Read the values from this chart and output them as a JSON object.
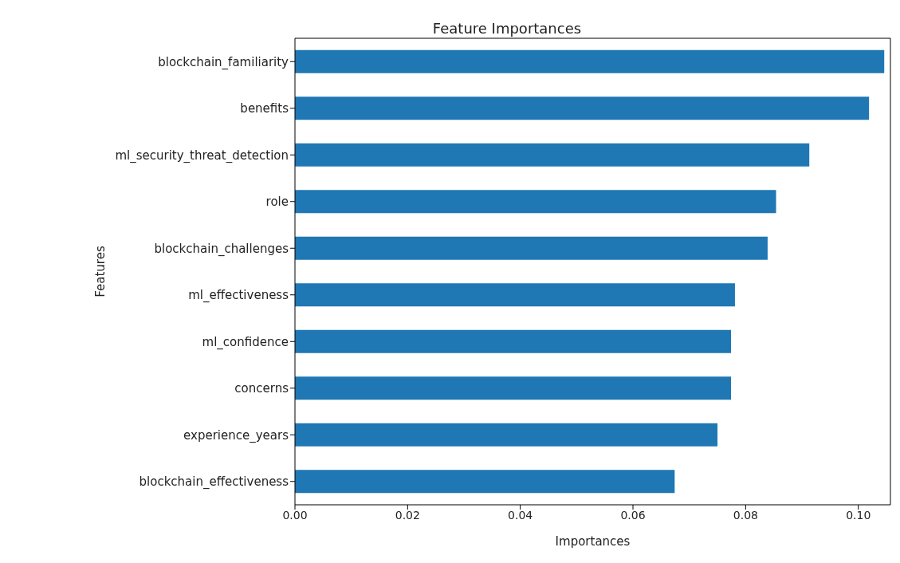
{
  "chart_data": {
    "type": "bar",
    "orientation": "horizontal",
    "title": "Feature Importances",
    "xlabel": "Importances",
    "ylabel": "Features",
    "categories": [
      "blockchain_familiarity",
      "benefits",
      "ml_security_threat_detection",
      "role",
      "blockchain_challenges",
      "ml_effectiveness",
      "ml_confidence",
      "concerns",
      "experience_years",
      "blockchain_effectiveness"
    ],
    "values": [
      0.1046,
      0.1019,
      0.0913,
      0.0854,
      0.0839,
      0.0781,
      0.0774,
      0.0774,
      0.075,
      0.0674
    ],
    "color": "#1f77b4",
    "xlim": [
      0,
      0.1057
    ],
    "xticks": [
      {
        "value": 0,
        "label": "0.00"
      },
      0.02,
      0.04,
      0.06,
      0.08,
      {
        "value": 0.1,
        "label": "0.10"
      }
    ],
    "grid": false
  }
}
